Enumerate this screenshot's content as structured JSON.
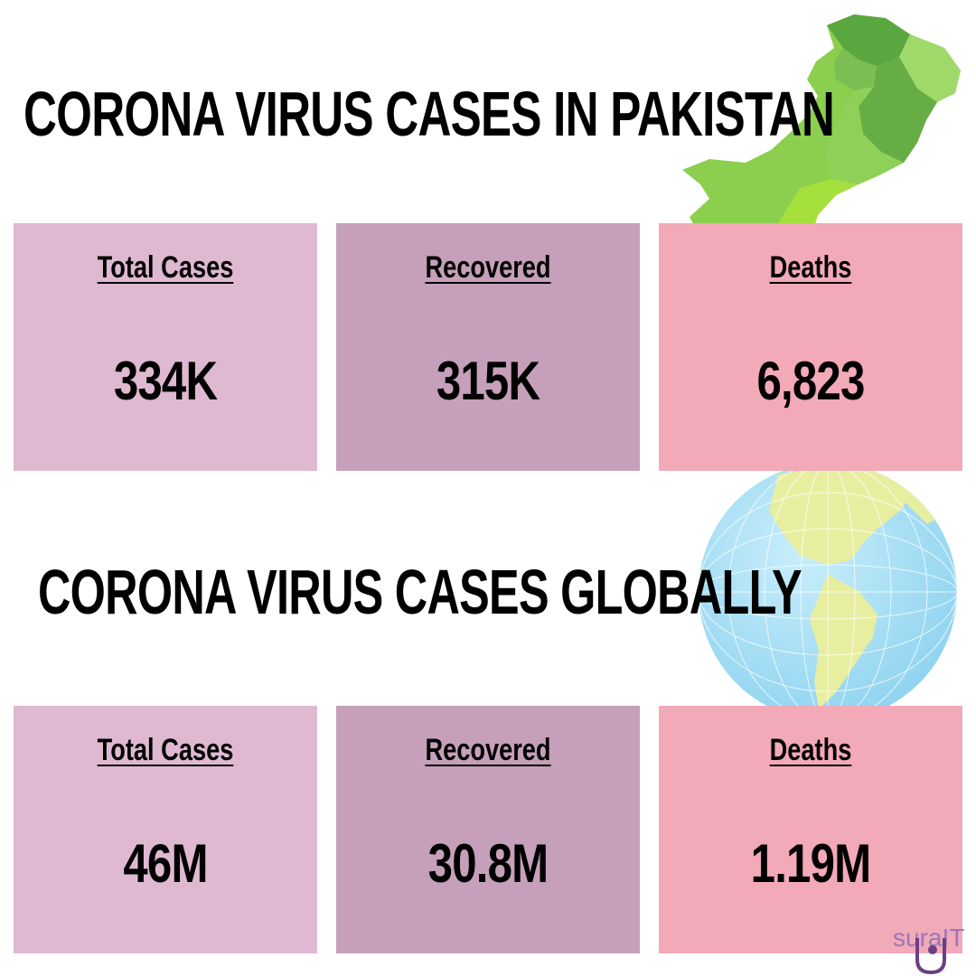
{
  "pakistan": {
    "heading": "CORONA VIRUS CASES IN PAKISTAN",
    "stats": [
      {
        "label": "Total Cases",
        "value": "334K",
        "color": "#dfb9d1"
      },
      {
        "label": "Recovered",
        "value": "315K",
        "color": "#c6a0ba"
      },
      {
        "label": "Deaths",
        "value": "6,823",
        "color": "#f2a9b8"
      }
    ]
  },
  "global": {
    "heading": "CORONA VIRUS CASES GLOBALLY",
    "stats": [
      {
        "label": "Total Cases",
        "value": "46M",
        "color": "#dfb9d1"
      },
      {
        "label": "Recovered",
        "value": "30.8M",
        "color": "#c6a0ba"
      },
      {
        "label": "Deaths",
        "value": "1.19M",
        "color": "#f2a9b8"
      }
    ]
  },
  "illustrations": {
    "map": "pakistan-map-icon",
    "globe": "globe-icon"
  },
  "logo": {
    "text": "suraIT",
    "accent": "#9a78b8"
  }
}
